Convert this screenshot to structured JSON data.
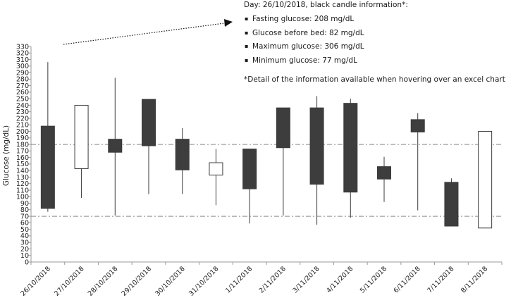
{
  "info_box": {
    "heading": "Day: 26/10/2018, black candle information*:",
    "items": [
      "Fasting glucose: 208 mg/dL",
      "Glucose before bed: 82 mg/dL",
      "Maximum glucose: 306 mg/dL",
      "Minimum glucose: 77 mg/dL"
    ],
    "note": "*Detail of the information available when hovering over an excel chart"
  },
  "chart_data": {
    "type": "candlestick",
    "ylabel": "Glucose (mg/dL)",
    "xlabel": "",
    "ylim": [
      0,
      330
    ],
    "ytick_step": 10,
    "reference_lines": [
      180,
      70
    ],
    "categories": [
      "26/10/2018",
      "27/10/2018",
      "28/10/2018",
      "29/10/2018",
      "30/10/2018",
      "31/10/2018",
      "1/11/2018",
      "2/11/2018",
      "3/11/2018",
      "4/11/2018",
      "5/11/2018",
      "6/11/2018",
      "7/11/2018",
      "8/11/2018"
    ],
    "candles": [
      {
        "open": 208,
        "close": 82,
        "high": 306,
        "low": 77,
        "color": "black"
      },
      {
        "open": 143,
        "close": 240,
        "high": 240,
        "low": 98,
        "color": "white"
      },
      {
        "open": 188,
        "close": 168,
        "high": 282,
        "low": 71,
        "color": "black"
      },
      {
        "open": 249,
        "close": 178,
        "high": 249,
        "low": 104,
        "color": "black"
      },
      {
        "open": 188,
        "close": 141,
        "high": 205,
        "low": 104,
        "color": "black"
      },
      {
        "open": 133,
        "close": 152,
        "high": 173,
        "low": 87,
        "color": "white"
      },
      {
        "open": 173,
        "close": 112,
        "high": 173,
        "low": 59,
        "color": "black"
      },
      {
        "open": 236,
        "close": 175,
        "high": 236,
        "low": 71,
        "color": "black"
      },
      {
        "open": 236,
        "close": 119,
        "high": 254,
        "low": 57,
        "color": "black"
      },
      {
        "open": 243,
        "close": 107,
        "high": 250,
        "low": 68,
        "color": "black"
      },
      {
        "open": 146,
        "close": 127,
        "high": 161,
        "low": 92,
        "color": "black"
      },
      {
        "open": 218,
        "close": 199,
        "high": 228,
        "low": 79,
        "color": "black"
      },
      {
        "open": 122,
        "close": 55,
        "high": 128,
        "low": 55,
        "color": "black"
      },
      {
        "open": 52,
        "close": 200,
        "high": 200,
        "low": 52,
        "color": "white"
      }
    ],
    "colors": {
      "black_candle": "#3d3d3d",
      "white_candle": "#ffffff",
      "outline": "#3a3a3a",
      "reference_line": "#8a8a8a",
      "axis": "#9a9a9a"
    }
  }
}
